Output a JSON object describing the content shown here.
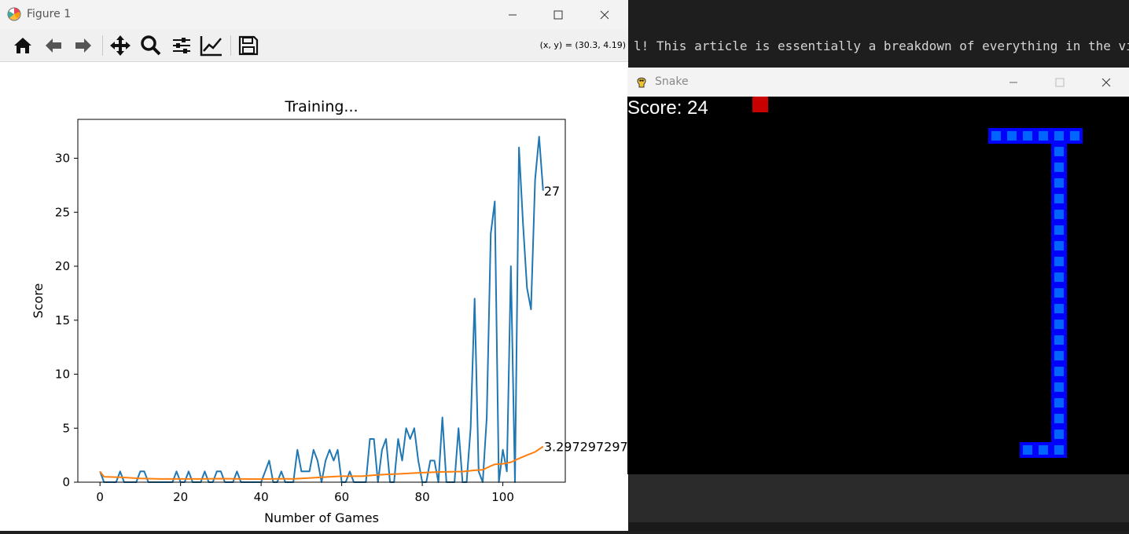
{
  "terminal": {
    "line": "l! This article is essentially a breakdown of everything in the vid"
  },
  "figure": {
    "title": "Figure 1",
    "coord_readout": "(x, y) = (30.3, 4.19)",
    "toolbar": [
      "home-icon",
      "back-arrow-icon",
      "forward-arrow-icon",
      "pan-icon",
      "zoom-icon",
      "configure-subplots-icon",
      "edit-axis-icon",
      "save-icon"
    ]
  },
  "chart_data": {
    "type": "line",
    "title": "Training...",
    "xlabel": "Number of Games",
    "ylabel": "Score",
    "xlim": [
      -5.5,
      115.5
    ],
    "ylim": [
      0,
      33.6
    ],
    "xticks": [
      0,
      20,
      40,
      60,
      80,
      100
    ],
    "yticks": [
      0,
      5,
      10,
      15,
      20,
      25,
      30
    ],
    "grid": false,
    "series": [
      {
        "color": "#1f77b4",
        "x": [
          0,
          1,
          2,
          3,
          4,
          5,
          6,
          7,
          8,
          9,
          10,
          11,
          12,
          13,
          14,
          15,
          16,
          17,
          18,
          19,
          20,
          21,
          22,
          23,
          24,
          25,
          26,
          27,
          28,
          29,
          30,
          31,
          32,
          33,
          34,
          35,
          36,
          37,
          38,
          39,
          40,
          41,
          42,
          43,
          44,
          45,
          46,
          47,
          48,
          49,
          50,
          51,
          52,
          53,
          54,
          55,
          56,
          57,
          58,
          59,
          60,
          61,
          62,
          63,
          64,
          65,
          66,
          67,
          68,
          69,
          70,
          71,
          72,
          73,
          74,
          75,
          76,
          77,
          78,
          79,
          80,
          81,
          82,
          83,
          84,
          85,
          86,
          87,
          88,
          89,
          90,
          91,
          92,
          93,
          94,
          95,
          96,
          97,
          98,
          99,
          100,
          101,
          102,
          103,
          104,
          105,
          106,
          107,
          108,
          109,
          110
        ],
        "values": [
          1,
          0,
          0,
          0,
          0,
          1,
          0,
          0,
          0,
          0,
          1,
          1,
          0,
          0,
          0,
          0,
          0,
          0,
          0,
          1,
          0,
          0,
          1,
          0,
          0,
          0,
          1,
          0,
          0,
          1,
          1,
          0,
          0,
          0,
          1,
          0,
          0,
          0,
          0,
          0,
          0,
          1,
          2,
          0,
          0,
          1,
          0,
          0,
          0,
          3,
          1,
          1,
          1,
          3,
          2,
          0,
          2,
          3,
          2,
          3,
          0,
          0,
          1,
          0,
          0,
          0,
          0,
          4,
          4,
          0,
          3,
          4,
          0,
          0,
          4,
          2,
          5,
          4,
          5,
          2,
          0,
          0,
          2,
          2,
          0,
          6,
          0,
          0,
          0,
          5,
          0,
          0,
          5,
          17,
          1,
          0,
          6,
          23,
          26,
          0,
          3,
          1,
          20,
          0,
          31,
          24,
          18,
          16,
          28,
          32,
          27
        ]
      },
      {
        "color": "#ff7f0e",
        "x": [
          0,
          1,
          5,
          10,
          15,
          20,
          25,
          30,
          35,
          40,
          45,
          48,
          50,
          55,
          60,
          65,
          68,
          70,
          75,
          80,
          85,
          90,
          93,
          95,
          97,
          98,
          100,
          102,
          104,
          106,
          108,
          110
        ],
        "values": [
          1,
          0.5,
          0.45,
          0.35,
          0.3,
          0.3,
          0.3,
          0.33,
          0.3,
          0.28,
          0.32,
          0.3,
          0.35,
          0.45,
          0.55,
          0.55,
          0.65,
          0.7,
          0.78,
          0.88,
          0.95,
          0.98,
          1.1,
          1.15,
          1.5,
          1.65,
          1.7,
          1.85,
          2.2,
          2.5,
          2.8,
          3.3
        ]
      }
    ],
    "annotations": [
      {
        "x": 110,
        "y": 27,
        "text": "27"
      },
      {
        "x": 110,
        "y": 3.3,
        "text": "3.297297297"
      }
    ]
  },
  "snake": {
    "title": "Snake",
    "score_text": "Score: 24",
    "food": {
      "col": 7,
      "row": 0
    },
    "body": [
      [
        27,
        2
      ],
      [
        26,
        2
      ],
      [
        25,
        2
      ],
      [
        24,
        2
      ],
      [
        22,
        2
      ],
      [
        23,
        2
      ],
      [
        26,
        3
      ],
      [
        26,
        4
      ],
      [
        26,
        5
      ],
      [
        26,
        6
      ],
      [
        26,
        7
      ],
      [
        26,
        8
      ],
      [
        26,
        9
      ],
      [
        26,
        10
      ],
      [
        26,
        11
      ],
      [
        26,
        12
      ],
      [
        26,
        13
      ],
      [
        26,
        14
      ],
      [
        26,
        15
      ],
      [
        26,
        16
      ],
      [
        26,
        17
      ],
      [
        26,
        18
      ],
      [
        26,
        19
      ],
      [
        26,
        20
      ],
      [
        26,
        21
      ],
      [
        26,
        22
      ],
      [
        25,
        22
      ],
      [
        24,
        22
      ]
    ]
  }
}
